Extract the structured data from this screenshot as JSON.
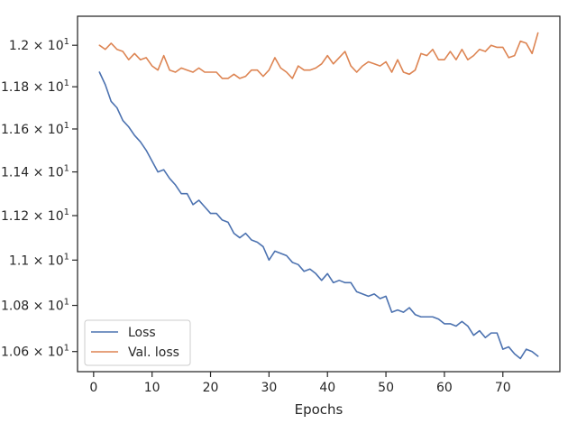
{
  "chart_data": {
    "type": "line",
    "xlabel": "Epochs",
    "ylabel": "",
    "xlim": [
      -2.75,
      79.75
    ],
    "ylim": [
      10.514,
      12.142
    ],
    "xticks": [
      0,
      10,
      20,
      30,
      40,
      50,
      60,
      70
    ],
    "yticks": [
      {
        "value": 10.6,
        "mantissa": "1.06"
      },
      {
        "value": 10.8,
        "mantissa": "1.08"
      },
      {
        "value": 11.0,
        "mantissa": "1.1"
      },
      {
        "value": 11.2,
        "mantissa": "1.12"
      },
      {
        "value": 11.4,
        "mantissa": "1.14"
      },
      {
        "value": 11.6,
        "mantissa": "1.16"
      },
      {
        "value": 11.8,
        "mantissa": "1.18"
      },
      {
        "value": 12.0,
        "mantissa": "1.2"
      }
    ],
    "ytick_base": "10",
    "ytick_exponent": "1",
    "y_scale": "log",
    "grid": false,
    "legend_position": "lower-left",
    "x": [
      1,
      2,
      3,
      4,
      5,
      6,
      7,
      8,
      9,
      10,
      11,
      12,
      13,
      14,
      15,
      16,
      17,
      18,
      19,
      20,
      21,
      22,
      23,
      24,
      25,
      26,
      27,
      28,
      29,
      30,
      31,
      32,
      33,
      34,
      35,
      36,
      37,
      38,
      39,
      40,
      41,
      42,
      43,
      44,
      45,
      46,
      47,
      48,
      49,
      50,
      51,
      52,
      53,
      54,
      55,
      56,
      57,
      58,
      59,
      60,
      61,
      62,
      63,
      64,
      65,
      66,
      67,
      68,
      69,
      70,
      71,
      72,
      73,
      74,
      75,
      76
    ],
    "series": [
      {
        "name": "Loss",
        "color": "#4c72b0",
        "values": [
          11.87,
          11.81,
          11.73,
          11.7,
          11.64,
          11.61,
          11.57,
          11.54,
          11.5,
          11.45,
          11.4,
          11.41,
          11.37,
          11.34,
          11.3,
          11.3,
          11.25,
          11.27,
          11.24,
          11.21,
          11.21,
          11.18,
          11.17,
          11.12,
          11.1,
          11.12,
          11.09,
          11.08,
          11.06,
          11.0,
          11.04,
          11.03,
          11.02,
          10.99,
          10.98,
          10.95,
          10.96,
          10.94,
          10.91,
          10.94,
          10.9,
          10.91,
          10.9,
          10.9,
          10.86,
          10.85,
          10.84,
          10.85,
          10.83,
          10.84,
          10.77,
          10.78,
          10.77,
          10.79,
          10.76,
          10.75,
          10.75,
          10.75,
          10.74,
          10.72,
          10.72,
          10.71,
          10.73,
          10.71,
          10.67,
          10.69,
          10.66,
          10.68,
          10.68,
          10.61,
          10.62,
          10.59,
          10.57,
          10.61,
          10.6,
          10.58
        ]
      },
      {
        "name": "Val. loss",
        "color": "#dd8452",
        "values": [
          12.0,
          11.98,
          12.01,
          11.98,
          11.97,
          11.93,
          11.96,
          11.93,
          11.94,
          11.9,
          11.88,
          11.95,
          11.88,
          11.87,
          11.89,
          11.88,
          11.87,
          11.89,
          11.87,
          11.87,
          11.87,
          11.84,
          11.84,
          11.86,
          11.84,
          11.85,
          11.88,
          11.88,
          11.85,
          11.88,
          11.94,
          11.89,
          11.87,
          11.84,
          11.9,
          11.88,
          11.88,
          11.89,
          11.91,
          11.95,
          11.91,
          11.94,
          11.97,
          11.9,
          11.87,
          11.9,
          11.92,
          11.91,
          11.9,
          11.92,
          11.87,
          11.93,
          11.87,
          11.86,
          11.88,
          11.96,
          11.95,
          11.98,
          11.93,
          11.93,
          11.97,
          11.93,
          11.98,
          11.93,
          11.95,
          11.98,
          11.97,
          12.0,
          11.99,
          11.99,
          11.94,
          11.95,
          12.02,
          12.01,
          11.96,
          12.06
        ]
      }
    ]
  }
}
